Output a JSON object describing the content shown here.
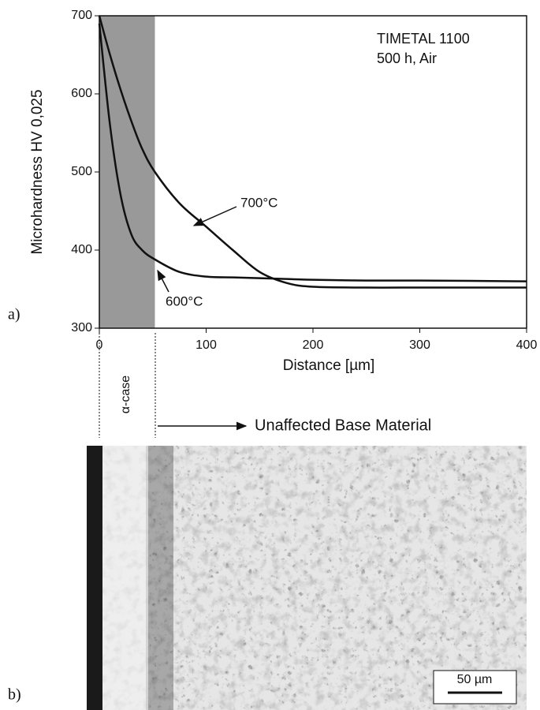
{
  "chart_data": {
    "type": "line",
    "x_label": "Distance [µm]",
    "y_label": "Microhardness HV 0,025",
    "text_lines": [
      "TIMETAL 1100",
      "500 h, Air"
    ],
    "x": [
      0,
      10,
      20,
      30,
      40,
      52,
      75,
      100,
      125,
      150,
      175,
      200,
      250,
      300,
      400
    ],
    "series": [
      {
        "name": "700°C",
        "color": "#111111",
        "values": [
          700,
          650,
          605,
          565,
          530,
          500,
          460,
          430,
          400,
          372,
          358,
          353,
          352,
          352,
          352
        ]
      },
      {
        "name": "600°C",
        "color": "#111111",
        "values": [
          690,
          560,
          470,
          420,
          400,
          388,
          372,
          366,
          365,
          364,
          363,
          362,
          361,
          361,
          360
        ]
      }
    ],
    "shaded_xlim": [
      0,
      52
    ],
    "shade_color": "#999999",
    "xlim": [
      0,
      400
    ],
    "ylim": [
      300,
      700
    ],
    "xticks": [
      0,
      100,
      200,
      300,
      400
    ],
    "yticks": [
      300,
      400,
      500,
      600,
      700
    ]
  },
  "panel_labels": [
    "a)",
    "b)"
  ],
  "micrograph": {
    "alpha_case_label": "α-case",
    "base_label": "Unaffected Base Material",
    "scale_bar": "50 µm"
  }
}
